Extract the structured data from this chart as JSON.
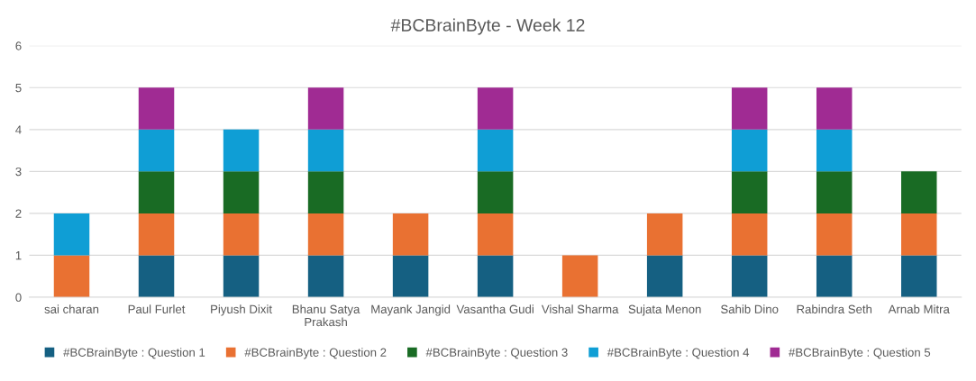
{
  "chart_data": {
    "type": "bar",
    "title": "#BCBrainByte - Week 12",
    "stacked": true,
    "categories": [
      "sai charan",
      "Paul Furlet",
      "Piyush Dixit",
      "Bhanu Satya Prakash",
      "Mayank Jangid",
      "Vasantha Gudi",
      "Vishal Sharma",
      "Sujata Menon",
      "Sahib Dino",
      "Rabindra Seth",
      "Arnab Mitra"
    ],
    "series": [
      {
        "name": "#BCBrainByte : Question 1",
        "color": "#156082",
        "values": [
          null,
          1,
          1,
          1,
          1,
          1,
          null,
          1,
          1,
          1,
          1
        ]
      },
      {
        "name": "#BCBrainByte : Question 2",
        "color": "#e97132",
        "values": [
          1,
          1,
          1,
          1,
          1,
          1,
          1,
          1,
          1,
          1,
          1
        ]
      },
      {
        "name": "#BCBrainByte : Question 3",
        "color": "#196b24",
        "values": [
          null,
          1,
          1,
          1,
          null,
          1,
          null,
          null,
          1,
          1,
          1
        ]
      },
      {
        "name": "#BCBrainByte : Question 4",
        "color": "#0f9ed5",
        "values": [
          1,
          1,
          1,
          1,
          null,
          1,
          null,
          null,
          1,
          1,
          null
        ]
      },
      {
        "name": "#BCBrainByte : Question 5",
        "color": "#a02b93",
        "values": [
          null,
          1,
          null,
          1,
          null,
          1,
          null,
          null,
          1,
          1,
          null
        ]
      }
    ],
    "ylim": [
      0,
      6
    ],
    "yticks": [
      0,
      1,
      2,
      3,
      4,
      5,
      6
    ],
    "grid": "y",
    "legend": "bottom"
  }
}
